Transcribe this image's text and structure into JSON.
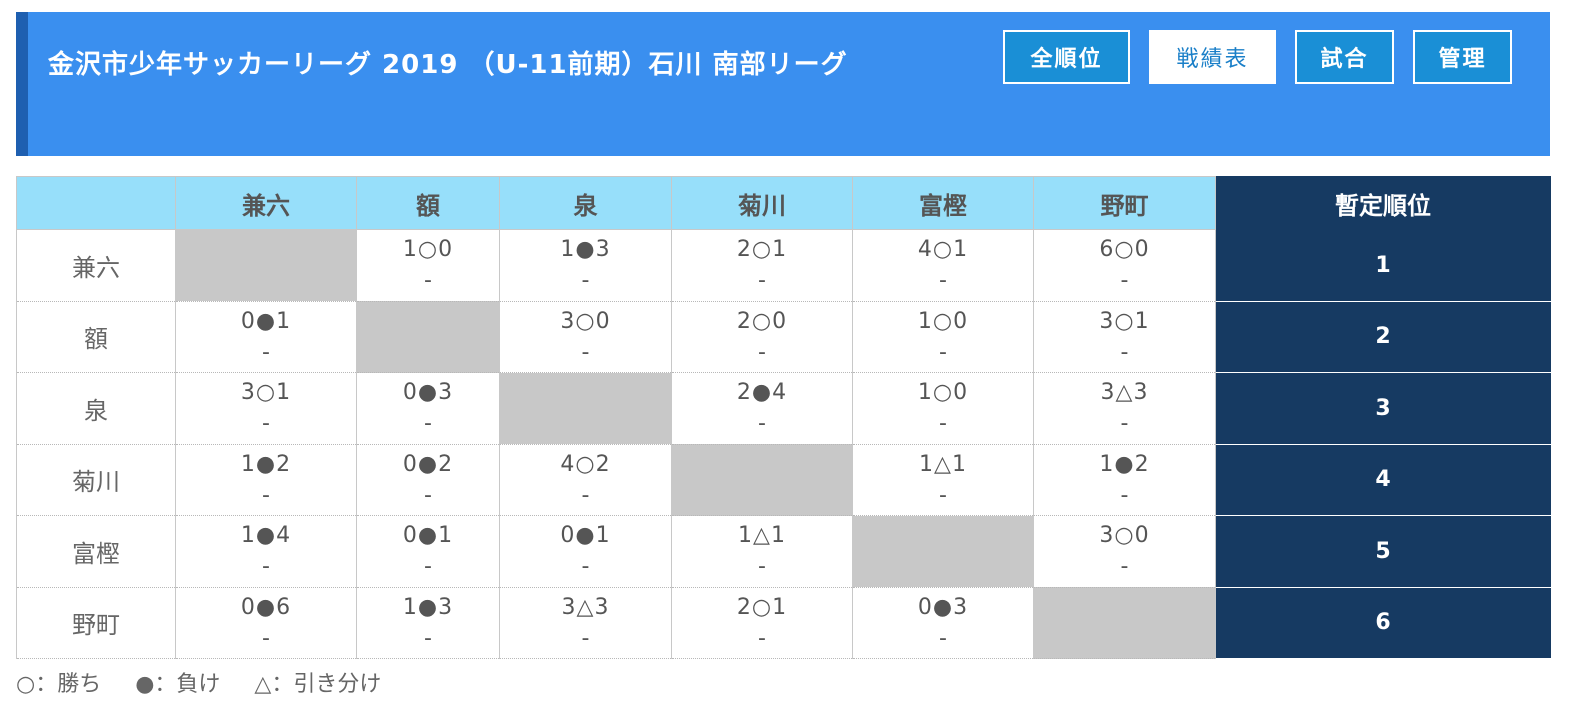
{
  "header": {
    "title": "金沢市少年サッカーリーグ 2019 （U-11前期）石川 南部リーグ",
    "nav": [
      "全順位",
      "戦績表",
      "試合",
      "管理"
    ],
    "active_nav": 1
  },
  "table": {
    "rank_header": "暫定順位",
    "teams": [
      "兼六",
      "額",
      "泉",
      "菊川",
      "富樫",
      "野町"
    ],
    "rows": [
      {
        "team": "兼六",
        "results": [
          null,
          "1○0",
          "1●3",
          "2○1",
          "4○1",
          "6○0"
        ],
        "rank": "1"
      },
      {
        "team": "額",
        "results": [
          "0●1",
          null,
          "3○0",
          "2○0",
          "1○0",
          "3○1"
        ],
        "rank": "2"
      },
      {
        "team": "泉",
        "results": [
          "3○1",
          "0●3",
          null,
          "2●4",
          "1○0",
          "3△3"
        ],
        "rank": "3"
      },
      {
        "team": "菊川",
        "results": [
          "1●2",
          "0●2",
          "4○2",
          null,
          "1△1",
          "1●2"
        ],
        "rank": "4"
      },
      {
        "team": "富樫",
        "results": [
          "1●4",
          "0●1",
          "0●1",
          "1△1",
          null,
          "3○0"
        ],
        "rank": "5"
      },
      {
        "team": "野町",
        "results": [
          "0●6",
          "1●3",
          "3△3",
          "2○1",
          "0●3",
          null
        ],
        "rank": "6"
      }
    ],
    "sub_text": "-"
  },
  "legend": [
    "○：勝ち",
    "●：負け",
    "△：引き分け"
  ],
  "colors": {
    "header_bg": "#3a8fef",
    "header_accent": "#1e5fb0",
    "table_head_bg": "#97dffa",
    "rank_bg": "#163a62",
    "self_cell_bg": "#c8c8c8"
  }
}
